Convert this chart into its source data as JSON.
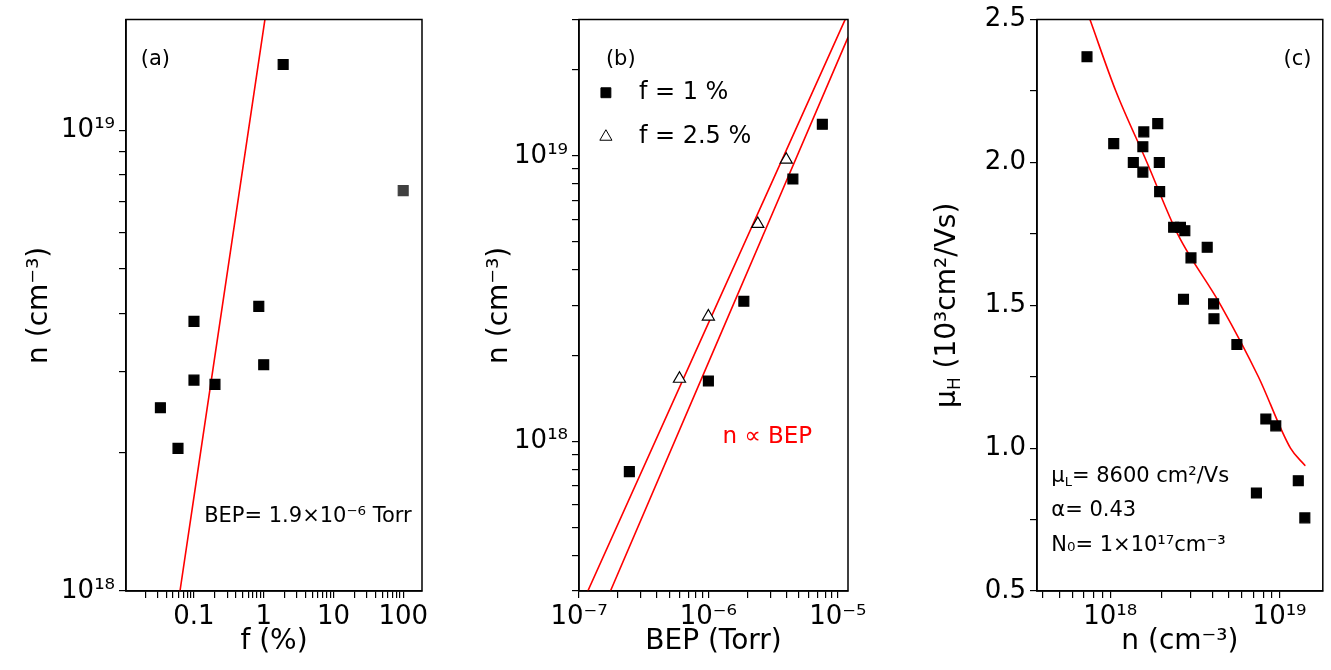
{
  "chart_data": [
    {
      "type": "scatter",
      "xlabel": "f (%)",
      "ylabel": "n (cm⁻³)",
      "log": "xy",
      "xlim": [
        0.0106,
        186
      ],
      "ylim": [
        1e+18,
        1.74e+19
      ],
      "xticks": [
        {
          "value": 0.02,
          "label": null
        },
        {
          "value": 0.03,
          "label": null
        },
        {
          "value": 0.04,
          "label": null
        },
        {
          "value": 0.05,
          "label": null
        },
        {
          "value": 0.06,
          "label": null
        },
        {
          "value": 0.07,
          "label": null
        },
        {
          "value": 0.08,
          "label": null
        },
        {
          "value": 0.09,
          "label": null
        },
        0.1,
        {
          "value": 0.2,
          "label": null
        },
        {
          "value": 0.3,
          "label": null
        },
        {
          "value": 0.4,
          "label": null
        },
        {
          "value": 0.5,
          "label": null
        },
        {
          "value": 0.6,
          "label": null
        },
        {
          "value": 0.7,
          "label": null
        },
        {
          "value": 0.8,
          "label": null
        },
        {
          "value": 0.9,
          "label": null
        },
        1,
        {
          "value": 2,
          "label": null
        },
        {
          "value": 3,
          "label": null
        },
        {
          "value": 4,
          "label": null
        },
        {
          "value": 5,
          "label": null
        },
        {
          "value": 6,
          "label": null
        },
        {
          "value": 7,
          "label": null
        },
        {
          "value": 8,
          "label": null
        },
        {
          "value": 9,
          "label": null
        },
        10,
        {
          "value": 20,
          "label": null
        },
        {
          "value": 30,
          "label": null
        },
        {
          "value": 40,
          "label": null
        },
        {
          "value": 50,
          "label": null
        },
        {
          "value": 60,
          "label": null
        },
        {
          "value": 70,
          "label": null
        },
        {
          "value": 80,
          "label": null
        },
        {
          "value": 90,
          "label": null
        },
        100
      ],
      "yticks": [
        {
          "value": 1e+18,
          "label": "10¹⁸"
        },
        {
          "value": 2e+18,
          "label": null
        },
        {
          "value": 3e+18,
          "label": null
        },
        {
          "value": 4e+18,
          "label": null
        },
        {
          "value": 5e+18,
          "label": null
        },
        {
          "value": 6e+18,
          "label": null
        },
        {
          "value": 7e+18,
          "label": null
        },
        {
          "value": 8e+18,
          "label": null
        },
        {
          "value": 9e+18,
          "label": null
        },
        {
          "value": 1e+19,
          "label": "10¹⁹"
        }
      ],
      "annotations": [
        "(a)",
        "BEP= 1.9×10⁻⁶ Torr"
      ],
      "series": [
        {
          "marker": "square",
          "color": "#000000",
          "colors": [
            "#000000",
            "#404040",
            "#000000",
            "#000000",
            "#000000",
            "#000000",
            "#000000",
            "#000000",
            "#000000"
          ],
          "x": [
            1.9,
            100,
            0.85,
            0.1,
            1.0,
            0.1,
            0.2,
            0.033,
            0.059
          ],
          "values": [
            1.39e+19,
            7.4e+18,
            4.15e+18,
            3.85e+18,
            3.1e+18,
            2.87e+18,
            2.81e+18,
            2.5e+18,
            2.04e+18
          ]
        },
        {
          "type": "line",
          "marker": "none",
          "color": "#ff0000",
          "x": [
            0.063,
            1.04
          ],
          "values": [
            1e+18,
            1.74e+19
          ]
        }
      ]
    },
    {
      "type": "scatter",
      "xlabel": "BEP (Torr)",
      "ylabel": "n (cm⁻³)",
      "log": "xy",
      "xlim": [
        1e-07,
        1.2e-05
      ],
      "ylim": [
        3e+17,
        3e+19
      ],
      "legend": "top left",
      "xticks": [
        {
          "value": 1e-07,
          "label": "10⁻⁷"
        },
        {
          "value": 2e-07,
          "label": null
        },
        {
          "value": 3e-07,
          "label": null
        },
        {
          "value": 4e-07,
          "label": null
        },
        {
          "value": 5e-07,
          "label": null
        },
        {
          "value": 6e-07,
          "label": null
        },
        {
          "value": 7e-07,
          "label": null
        },
        {
          "value": 8e-07,
          "label": null
        },
        {
          "value": 9e-07,
          "label": null
        },
        {
          "value": 1e-06,
          "label": "10⁻⁶"
        },
        {
          "value": 2e-06,
          "label": null
        },
        {
          "value": 3e-06,
          "label": null
        },
        {
          "value": 4e-06,
          "label": null
        },
        {
          "value": 5e-06,
          "label": null
        },
        {
          "value": 6e-06,
          "label": null
        },
        {
          "value": 7e-06,
          "label": null
        },
        {
          "value": 8e-06,
          "label": null
        },
        {
          "value": 9e-06,
          "label": null
        },
        {
          "value": 1e-05,
          "label": "10⁻⁵"
        }
      ],
      "yticks": [
        {
          "value": 3e+17,
          "label": null
        },
        {
          "value": 4e+17,
          "label": null
        },
        {
          "value": 5e+17,
          "label": null
        },
        {
          "value": 6e+17,
          "label": null
        },
        {
          "value": 7e+17,
          "label": null
        },
        {
          "value": 8e+17,
          "label": null
        },
        {
          "value": 9e+17,
          "label": null
        },
        {
          "value": 1e+18,
          "label": "10¹⁸"
        },
        {
          "value": 2e+18,
          "label": null
        },
        {
          "value": 3e+18,
          "label": null
        },
        {
          "value": 4e+18,
          "label": null
        },
        {
          "value": 5e+18,
          "label": null
        },
        {
          "value": 6e+18,
          "label": null
        },
        {
          "value": 7e+18,
          "label": null
        },
        {
          "value": 8e+18,
          "label": null
        },
        {
          "value": 9e+18,
          "label": null
        },
        {
          "value": 1e+19,
          "label": "10¹⁹"
        },
        {
          "value": 2e+19,
          "label": null
        },
        {
          "value": 3e+19,
          "label": null
        }
      ],
      "annotations": [
        "(b)",
        "n ∝ BEP"
      ],
      "series": [
        {
          "name": "f = 1 %",
          "marker": "square",
          "color": "#000000",
          "x": [
            2.45e-07,
            1e-06,
            1.88e-06,
            4.5e-06,
            7.6e-06
          ],
          "values": [
            7.85e+17,
            1.63e+18,
            3.1e+18,
            8.3e+18,
            1.29e+19
          ]
        },
        {
          "name": "f = 2.5 %",
          "marker": "triangle",
          "color": "#000000",
          "x": [
            5.98e-07,
            1e-06,
            2.41e-06,
            4e-06
          ],
          "values": [
            1.66e+18,
            2.74e+18,
            5.78e+18,
            9.7e+18
          ]
        },
        {
          "type": "line",
          "marker": "none",
          "color": "#ff0000",
          "x": [
            1.17e-07,
            1.14e-05
          ],
          "values": [
            3e+17,
            3e+19
          ]
        },
        {
          "type": "line",
          "marker": "none",
          "color": "#ff0000",
          "x": [
            1.75e-07,
            1.2e-05
          ],
          "values": [
            3e+17,
            2.6e+19
          ]
        }
      ]
    },
    {
      "type": "scatter",
      "xlabel": "n (cm⁻³)",
      "ylabel": "μ$_{H}$ (10³cm²/Vs)",
      "log": "x",
      "xlim": [
        3.7e+17,
        1.8e+19
      ],
      "ylim": [
        0.5,
        2.5
      ],
      "xticks": [
        {
          "value": 4e+17,
          "label": null
        },
        {
          "value": 5e+17,
          "label": null
        },
        {
          "value": 6e+17,
          "label": null
        },
        {
          "value": 7e+17,
          "label": null
        },
        {
          "value": 8e+17,
          "label": null
        },
        {
          "value": 9e+17,
          "label": null
        },
        {
          "value": 1e+18,
          "label": "10¹⁸"
        },
        {
          "value": 2e+18,
          "label": null
        },
        {
          "value": 3e+18,
          "label": null
        },
        {
          "value": 4e+18,
          "label": null
        },
        {
          "value": 5e+18,
          "label": null
        },
        {
          "value": 6e+18,
          "label": null
        },
        {
          "value": 7e+18,
          "label": null
        },
        {
          "value": 8e+18,
          "label": null
        },
        {
          "value": 9e+18,
          "label": null
        },
        {
          "value": 1e+19,
          "label": "10¹⁹"
        }
      ],
      "yticks": [
        0.5,
        {
          "value": 0.75,
          "label": null
        },
        {
          "value": 1,
          "label": "1.0"
        },
        {
          "value": 1.25,
          "label": null
        },
        1.5,
        {
          "value": 1.75,
          "label": null
        },
        {
          "value": 2,
          "label": "2.0"
        },
        {
          "value": 2.25,
          "label": null
        },
        2.5
      ],
      "annotations": [
        "(c)",
        "μ$_{L}$= 8600 cm²/Vs",
        "α= 0.43",
        "N₀= 1×10¹⁷cm⁻³"
      ],
      "series": [
        {
          "marker": "square",
          "color": "#000000",
          "x": [
            7.3e+17,
            1.05e+18,
            1.37e+18,
            1.56e+18,
            1.58e+18,
            1.56e+18,
            1.91e+18,
            1.95e+18,
            1.96e+18,
            2.37e+18,
            2.6e+18,
            2.76e+18,
            3e+18,
            2.71e+18,
            3.74e+18,
            4.08e+18,
            4.1e+18,
            5.6e+18,
            8.3e+18,
            9.5e+18,
            7.3e+18,
            1.29e+19,
            1.41e+19
          ],
          "values": [
            2.37,
            2.066,
            2.0,
            2.055,
            2.107,
            1.966,
            2.136,
            2.0,
            1.898,
            1.773,
            1.773,
            1.761,
            1.666,
            1.521,
            1.703,
            1.505,
            1.453,
            1.363,
            1.102,
            1.078,
            0.843,
            0.886,
            0.756
          ]
        },
        {
          "type": "line",
          "marker": "none",
          "color": "#ff0000",
          "x": [
            7.6e+17,
            1.08e+18,
            1.65e+18,
            2.5e+18,
            4.5e+18,
            7.5e+18,
            1.16e+19,
            1.41e+19
          ],
          "values": [
            2.5,
            2.25,
            2.0,
            1.75,
            1.5,
            1.25,
            1.0,
            0.94
          ]
        }
      ]
    }
  ]
}
